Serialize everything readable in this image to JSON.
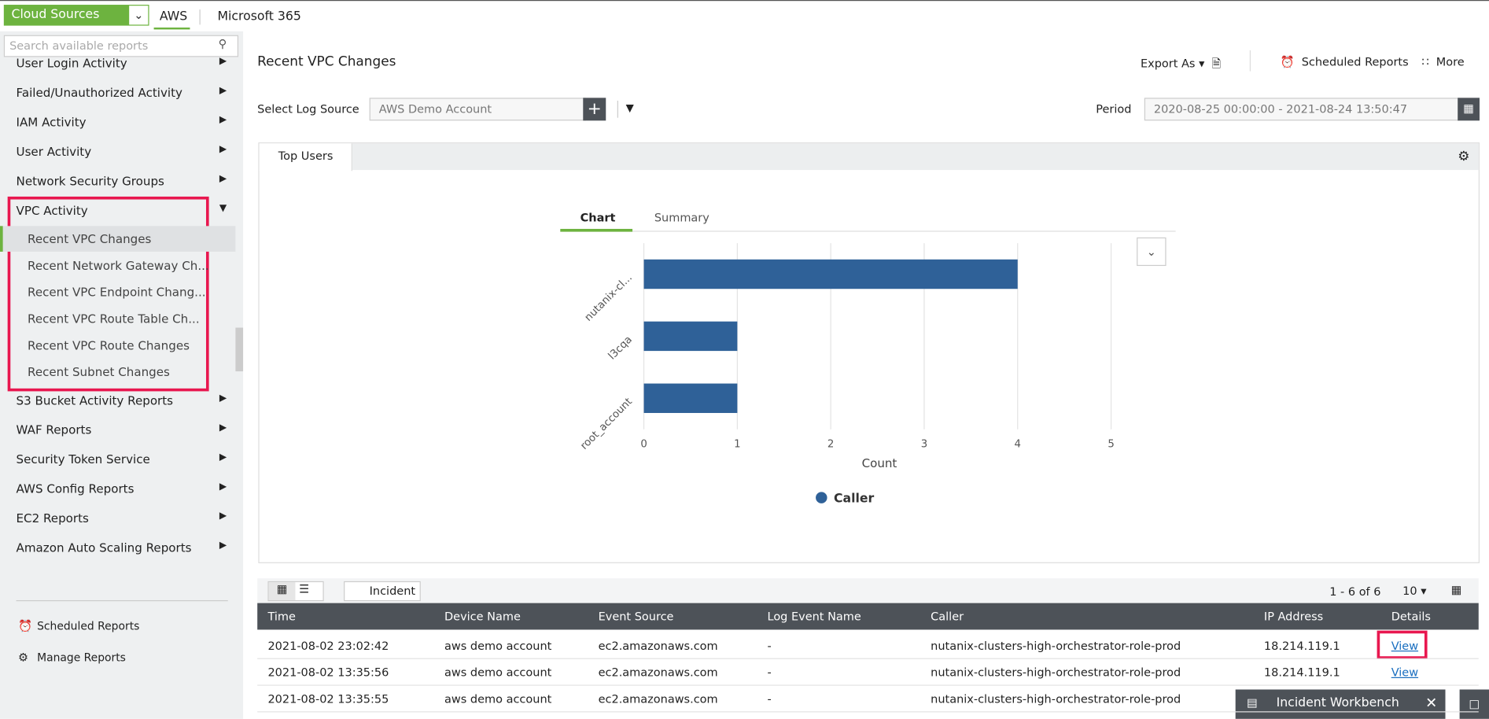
{
  "top_bar": {
    "dropdown": "Cloud Sources",
    "tabs": [
      "AWS",
      "Microsoft 365"
    ]
  },
  "sidebar": {
    "search_placeholder": "Search available reports",
    "items_before": [
      "User Login Activity",
      "Failed/Unauthorized Activity",
      "IAM Activity",
      "User Activity",
      "Network Security Groups",
      "VPC Activity"
    ],
    "vpc_children": [
      "Recent VPC Changes",
      "Recent Network Gateway Ch...",
      "Recent VPC Endpoint Chang...",
      "Recent VPC Route Table Ch...",
      "Recent VPC Route Changes",
      "Recent Subnet Changes"
    ],
    "items_after": [
      "S3 Bucket Activity Reports",
      "WAF Reports",
      "Security Token Service",
      "AWS Config Reports",
      "EC2 Reports",
      "Amazon Auto Scaling Reports"
    ],
    "footer": [
      "Scheduled Reports",
      "Manage Reports"
    ]
  },
  "header": {
    "title": "Recent VPC Changes",
    "export": "Export As",
    "scheduled": "Scheduled Reports",
    "more": "More"
  },
  "filters": {
    "log_source_label": "Select Log Source",
    "log_source": "AWS Demo Account",
    "period_label": "Period",
    "period": "2020-08-25 00:00:00 - 2021-08-24 13:50:47"
  },
  "panel_tab": "Top Users",
  "chart_tabs": [
    "Chart",
    "Summary"
  ],
  "chart_data": {
    "type": "bar",
    "orientation": "horizontal",
    "categories": [
      "nutanix-cl...",
      "l3cqa",
      "root_account"
    ],
    "series": [
      {
        "name": "Caller",
        "color": "#2f6198",
        "values": [
          4,
          1,
          1
        ]
      }
    ],
    "xlim": [
      0,
      5
    ],
    "xticks": [
      0,
      1,
      2,
      3,
      4,
      5
    ],
    "x_label": "Count",
    "grid": true
  },
  "table": {
    "incident": "Incident",
    "pagination": "1 - 6 of 6",
    "page_size": "10",
    "columns": [
      "Time",
      "Device Name",
      "Event Source",
      "Log Event Name",
      "Caller",
      "IP Address",
      "Details"
    ],
    "rows": [
      [
        "2021-08-02 23:02:42",
        "aws demo account",
        "ec2.amazonaws.com",
        "-",
        "nutanix-clusters-high-orchestrator-role-prod",
        "18.214.119.1",
        "View"
      ],
      [
        "2021-08-02 13:35:56",
        "aws demo account",
        "ec2.amazonaws.com",
        "-",
        "nutanix-clusters-high-orchestrator-role-prod",
        "18.214.119.1",
        "View"
      ],
      [
        "2021-08-02 13:35:55",
        "aws demo account",
        "ec2.amazonaws.com",
        "-",
        "nutanix-clusters-high-orchestrator-role-prod",
        "",
        ""
      ]
    ]
  },
  "workbench": "Incident Workbench"
}
